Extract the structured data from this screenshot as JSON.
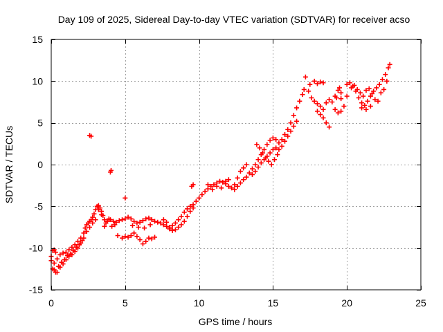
{
  "chart_data": {
    "type": "scatter",
    "title": "Day 109 of 2025, Sidereal Day-to-day VTEC variation (SDTVAR) for receiver acso",
    "xlabel": "GPS time / hours",
    "ylabel": "SDTVAR / TECUs",
    "xlim": [
      0,
      25
    ],
    "ylim": [
      -15,
      15
    ],
    "xticks": [
      0,
      5,
      10,
      15,
      20,
      25
    ],
    "yticks": [
      -15,
      -10,
      -5,
      0,
      5,
      10,
      15
    ],
    "xtick_labels": [
      "0",
      "5",
      "10",
      "15",
      "20",
      "25"
    ],
    "ytick_labels": [
      "-15",
      "-10",
      "-5",
      "0",
      "5",
      "10",
      "15"
    ],
    "grid": true,
    "marker": "plus",
    "color": "#ff0000",
    "series": [
      {
        "name": "SDTVAR",
        "points": [
          [
            0.0,
            -11.0
          ],
          [
            0.1,
            -12.5
          ],
          [
            0.2,
            -11.8
          ],
          [
            0.3,
            -12.9
          ],
          [
            0.4,
            -11.3
          ],
          [
            0.5,
            -12.2
          ],
          [
            0.6,
            -10.8
          ],
          [
            0.7,
            -11.7
          ],
          [
            0.8,
            -10.6
          ],
          [
            0.9,
            -11.4
          ],
          [
            1.0,
            -10.5
          ],
          [
            1.1,
            -10.9
          ],
          [
            1.2,
            -10.2
          ],
          [
            1.3,
            -10.7
          ],
          [
            1.4,
            -9.9
          ],
          [
            1.5,
            -10.3
          ],
          [
            1.6,
            -9.6
          ],
          [
            1.7,
            -9.9
          ],
          [
            1.8,
            -9.2
          ],
          [
            1.9,
            -9.6
          ],
          [
            2.0,
            -8.8
          ],
          [
            2.1,
            -9.1
          ],
          [
            2.2,
            -8.2
          ],
          [
            2.3,
            -7.6
          ],
          [
            2.4,
            -7.2
          ],
          [
            2.5,
            -7.0
          ],
          [
            2.6,
            -6.8
          ],
          [
            2.7,
            -6.6
          ],
          [
            2.8,
            -6.3
          ],
          [
            2.9,
            -5.9
          ],
          [
            3.0,
            -5.4
          ],
          [
            3.1,
            -5.0
          ],
          [
            3.2,
            -4.9
          ],
          [
            3.3,
            -5.2
          ],
          [
            3.4,
            -5.6
          ],
          [
            3.5,
            -6.1
          ],
          [
            3.6,
            -6.6
          ],
          [
            3.7,
            -7.0
          ],
          [
            3.8,
            -6.8
          ],
          [
            3.9,
            -6.5
          ],
          [
            4.0,
            -6.6
          ],
          [
            4.2,
            -6.8
          ],
          [
            4.4,
            -6.9
          ],
          [
            4.6,
            -6.7
          ],
          [
            4.8,
            -6.6
          ],
          [
            5.0,
            -6.5
          ],
          [
            5.2,
            -6.3
          ],
          [
            5.4,
            -6.5
          ],
          [
            5.6,
            -6.8
          ],
          [
            5.8,
            -7.0
          ],
          [
            6.0,
            -6.9
          ],
          [
            6.2,
            -6.7
          ],
          [
            6.4,
            -6.5
          ],
          [
            6.6,
            -6.4
          ],
          [
            6.8,
            -6.6
          ],
          [
            7.0,
            -6.8
          ],
          [
            7.2,
            -6.9
          ],
          [
            7.4,
            -7.0
          ],
          [
            7.6,
            -7.2
          ],
          [
            7.8,
            -7.4
          ],
          [
            8.0,
            -7.5
          ],
          [
            8.2,
            -7.3
          ],
          [
            8.4,
            -7.0
          ],
          [
            8.6,
            -6.6
          ],
          [
            8.8,
            -6.2
          ],
          [
            9.0,
            -5.7
          ],
          [
            9.2,
            -5.3
          ],
          [
            9.4,
            -5.0
          ],
          [
            9.6,
            -4.8
          ],
          [
            9.8,
            -4.4
          ],
          [
            10.0,
            -4.0
          ],
          [
            10.2,
            -3.6
          ],
          [
            10.4,
            -3.2
          ],
          [
            10.6,
            -2.9
          ],
          [
            10.8,
            -2.6
          ],
          [
            11.0,
            -2.4
          ],
          [
            11.2,
            -2.2
          ],
          [
            11.4,
            -2.0
          ],
          [
            11.6,
            -2.1
          ],
          [
            11.8,
            -2.3
          ],
          [
            12.0,
            -2.6
          ],
          [
            12.2,
            -2.8
          ],
          [
            12.4,
            -3.0
          ],
          [
            12.6,
            -2.6
          ],
          [
            12.8,
            -2.2
          ],
          [
            13.0,
            -1.8
          ],
          [
            13.2,
            -1.5
          ],
          [
            13.4,
            -1.0
          ],
          [
            13.6,
            -0.5
          ],
          [
            13.8,
            0.0
          ],
          [
            14.0,
            0.6
          ],
          [
            14.2,
            1.2
          ],
          [
            14.4,
            1.8
          ],
          [
            14.6,
            2.4
          ],
          [
            14.8,
            2.9
          ],
          [
            15.0,
            3.2
          ],
          [
            15.2,
            3.0
          ],
          [
            15.4,
            2.6
          ],
          [
            15.6,
            3.0
          ],
          [
            15.8,
            3.6
          ],
          [
            16.0,
            4.2
          ],
          [
            16.2,
            5.0
          ],
          [
            16.4,
            5.9
          ],
          [
            16.6,
            6.8
          ],
          [
            16.8,
            7.6
          ],
          [
            17.0,
            8.4
          ],
          [
            17.1,
            9.0
          ],
          [
            17.2,
            10.5
          ],
          [
            17.4,
            8.8
          ],
          [
            17.6,
            8.0
          ],
          [
            17.8,
            7.6
          ],
          [
            18.0,
            7.3
          ],
          [
            18.2,
            7.0
          ],
          [
            18.4,
            6.6
          ],
          [
            18.6,
            7.4
          ],
          [
            18.8,
            7.8
          ],
          [
            19.0,
            7.5
          ],
          [
            19.2,
            8.2
          ],
          [
            19.4,
            8.9
          ],
          [
            19.6,
            7.9
          ],
          [
            19.8,
            7.0
          ],
          [
            20.0,
            8.2
          ],
          [
            20.2,
            9.8
          ],
          [
            20.4,
            9.4
          ],
          [
            20.6,
            8.8
          ],
          [
            20.8,
            8.0
          ],
          [
            21.0,
            7.4
          ],
          [
            21.2,
            7.1
          ],
          [
            21.4,
            7.6
          ],
          [
            21.6,
            8.2
          ],
          [
            21.8,
            8.8
          ],
          [
            22.0,
            9.2
          ],
          [
            22.2,
            9.6
          ],
          [
            22.4,
            10.2
          ],
          [
            22.6,
            10.8
          ],
          [
            22.8,
            11.6
          ],
          [
            22.9,
            12.0
          ],
          [
            0.2,
            -12.6
          ],
          [
            0.4,
            -12.9
          ],
          [
            0.6,
            -12.3
          ],
          [
            0.8,
            -11.9
          ],
          [
            1.0,
            -11.4
          ],
          [
            1.2,
            -11.0
          ],
          [
            1.4,
            -10.8
          ],
          [
            1.6,
            -10.4
          ],
          [
            1.8,
            -10.0
          ],
          [
            2.0,
            -9.4
          ],
          [
            2.2,
            -8.8
          ],
          [
            2.4,
            -8.0
          ],
          [
            2.6,
            -7.5
          ],
          [
            2.8,
            -7.0
          ],
          [
            3.0,
            -6.6
          ],
          [
            5.0,
            -8.6
          ],
          [
            5.2,
            -8.7
          ],
          [
            5.4,
            -8.5
          ],
          [
            5.6,
            -8.2
          ],
          [
            5.8,
            -8.6
          ],
          [
            6.0,
            -9.0
          ],
          [
            6.2,
            -9.5
          ],
          [
            6.4,
            -9.2
          ],
          [
            6.6,
            -8.8
          ],
          [
            6.8,
            -8.9
          ],
          [
            7.0,
            -8.7
          ],
          [
            4.5,
            -8.5
          ],
          [
            4.8,
            -8.8
          ],
          [
            7.6,
            -6.6
          ],
          [
            7.8,
            -6.9
          ],
          [
            8.0,
            -7.7
          ],
          [
            8.2,
            -7.9
          ],
          [
            8.4,
            -7.8
          ],
          [
            8.6,
            -7.5
          ],
          [
            8.8,
            -7.2
          ],
          [
            9.0,
            -6.8
          ],
          [
            9.2,
            -6.2
          ],
          [
            9.4,
            -5.6
          ],
          [
            9.6,
            -5.2
          ],
          [
            13.6,
            -1.2
          ],
          [
            13.8,
            -0.8
          ],
          [
            14.0,
            -0.3
          ],
          [
            14.2,
            0.2
          ],
          [
            14.4,
            0.6
          ],
          [
            14.6,
            1.0
          ],
          [
            14.8,
            1.4
          ],
          [
            15.0,
            1.8
          ],
          [
            15.2,
            2.0
          ],
          [
            15.4,
            1.8
          ],
          [
            15.6,
            2.2
          ],
          [
            15.8,
            2.8
          ],
          [
            16.0,
            3.4
          ],
          [
            16.2,
            4.0
          ],
          [
            16.4,
            4.6
          ],
          [
            16.6,
            5.2
          ],
          [
            13.9,
            2.4
          ],
          [
            14.1,
            2.0
          ],
          [
            14.3,
            1.4
          ],
          [
            14.5,
            0.8
          ],
          [
            14.7,
            0.4
          ],
          [
            14.9,
            0.0
          ],
          [
            15.1,
            0.6
          ],
          [
            15.3,
            1.2
          ],
          [
            12.8,
            -0.8
          ],
          [
            12.6,
            -1.6
          ],
          [
            12.4,
            -2.4
          ],
          [
            13.0,
            -0.4
          ],
          [
            13.2,
            0.0
          ],
          [
            18.4,
            5.6
          ],
          [
            18.6,
            5.0
          ],
          [
            18.8,
            4.5
          ],
          [
            18.2,
            6.0
          ],
          [
            18.0,
            6.4
          ],
          [
            19.2,
            6.6
          ],
          [
            19.4,
            6.2
          ],
          [
            19.6,
            6.4
          ],
          [
            17.5,
            9.6
          ],
          [
            17.8,
            10.0
          ],
          [
            18.0,
            9.7
          ],
          [
            18.2,
            9.9
          ],
          [
            18.4,
            9.8
          ],
          [
            19.3,
            8.0
          ],
          [
            19.6,
            8.6
          ],
          [
            19.5,
            9.2
          ],
          [
            20.0,
            9.6
          ],
          [
            20.3,
            9.2
          ],
          [
            20.5,
            9.5
          ],
          [
            20.7,
            9.0
          ],
          [
            20.9,
            8.6
          ],
          [
            21.1,
            8.2
          ],
          [
            21.3,
            8.9
          ],
          [
            21.5,
            9.1
          ],
          [
            21.7,
            8.5
          ],
          [
            21.9,
            7.8
          ],
          [
            21.0,
            6.8
          ],
          [
            21.3,
            6.6
          ],
          [
            21.6,
            7.0
          ],
          [
            22.3,
            8.6
          ],
          [
            22.5,
            9.0
          ],
          [
            22.7,
            10.0
          ],
          [
            22.1,
            7.6
          ],
          [
            2.6,
            3.5
          ],
          [
            2.7,
            3.4
          ],
          [
            4.0,
            -0.9
          ],
          [
            4.05,
            -0.7
          ],
          [
            5.0,
            -4.0
          ],
          [
            9.6,
            -2.4
          ],
          [
            9.5,
            -2.6
          ],
          [
            10.6,
            -2.4
          ],
          [
            10.9,
            -3.0
          ],
          [
            11.2,
            -2.6
          ],
          [
            11.5,
            -2.8
          ],
          [
            11.8,
            -2.0
          ],
          [
            12.0,
            -1.8
          ],
          [
            5.5,
            -7.3
          ],
          [
            5.9,
            -7.5
          ],
          [
            6.3,
            -7.6
          ],
          [
            6.7,
            -7.2
          ],
          [
            4.1,
            -7.4
          ],
          [
            4.3,
            -7.2
          ],
          [
            3.6,
            -7.4
          ],
          [
            3.4,
            -6.0
          ],
          [
            3.2,
            -5.4
          ],
          [
            0.1,
            -10.3
          ],
          [
            0.2,
            -10.2
          ],
          [
            0.3,
            -10.5
          ],
          [
            0.0,
            -11.5
          ]
        ]
      }
    ]
  }
}
